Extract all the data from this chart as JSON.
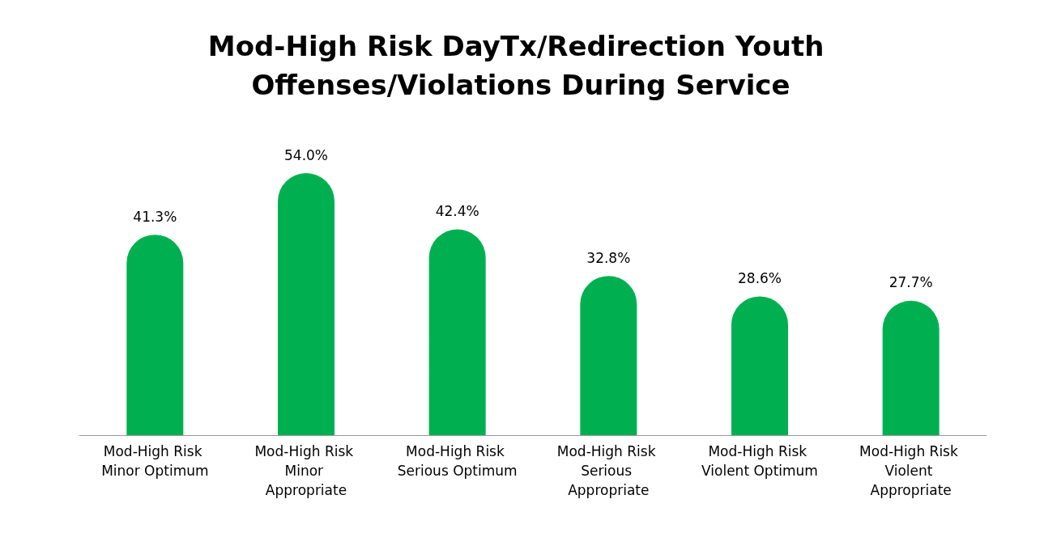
{
  "chart_data": {
    "type": "bar",
    "title": "Mod-High Risk DayTx/Redirection Youth Offenses/Violations During Service",
    "categories": [
      "Mod-High Risk Minor Optimum",
      "Mod-High Risk Minor Appropriate",
      "Mod-High Risk Serious Optimum",
      "Mod-High Risk Serious Appropriate",
      "Mod-High Risk Violent Optimum",
      "Mod-High Risk Violent Appropriate"
    ],
    "values": [
      41.3,
      54.0,
      42.4,
      32.8,
      28.6,
      27.7
    ],
    "value_labels": [
      "41.3%",
      "54.0%",
      "42.4%",
      "32.8%",
      "28.6%",
      "27.7%"
    ],
    "color": "#00b050"
  }
}
